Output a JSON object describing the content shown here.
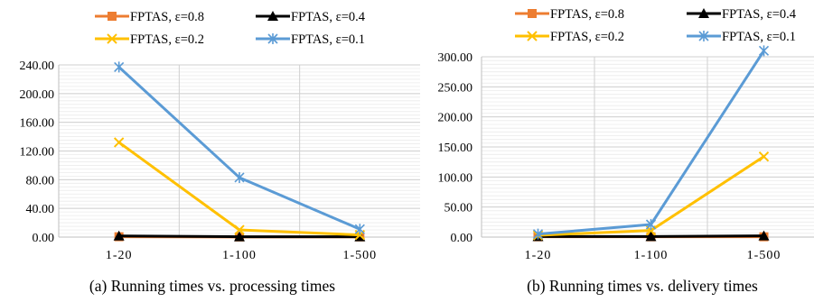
{
  "chart_data": [
    {
      "type": "line",
      "caption": "(a) Running times vs. processing times",
      "categories": [
        "1-20",
        "1-100",
        "1-500"
      ],
      "ylim": [
        0,
        240
      ],
      "yticks": [
        "0.00",
        "40.00",
        "80.00",
        "120.00",
        "160.00",
        "200.00",
        "240.00"
      ],
      "ytick_values": [
        0,
        40,
        80,
        120,
        160,
        200,
        240
      ],
      "minor_grid_step": 5,
      "legend_position": "top",
      "series": [
        {
          "name": "FPTAS, ε=0.8",
          "color": "#ED7D31",
          "marker": "square",
          "values": [
            0.5,
            0.2,
            0.3
          ]
        },
        {
          "name": "FPTAS, ε=0.4",
          "color": "#000000",
          "marker": "triangle",
          "values": [
            1.5,
            0.5,
            0.5
          ]
        },
        {
          "name": "FPTAS, ε=0.2",
          "color": "#FFC000",
          "marker": "x",
          "values": [
            132,
            10,
            3
          ]
        },
        {
          "name": "FPTAS, ε=0.1",
          "color": "#5B9BD5",
          "marker": "asterisk",
          "values": [
            237,
            83,
            11
          ]
        }
      ]
    },
    {
      "type": "line",
      "caption": "(b) Running times vs. delivery times",
      "categories": [
        "1-20",
        "1-100",
        "1-500"
      ],
      "ylim": [
        0,
        300
      ],
      "yticks": [
        "0.00",
        "50.00",
        "100.00",
        "150.00",
        "200.00",
        "250.00",
        "300.00"
      ],
      "ytick_values": [
        0,
        50,
        100,
        150,
        200,
        250,
        300
      ],
      "minor_grid_step": 6.25,
      "legend_position": "top",
      "series": [
        {
          "name": "FPTAS, ε=0.8",
          "color": "#ED7D31",
          "marker": "square",
          "values": [
            0.5,
            0.5,
            0.5
          ]
        },
        {
          "name": "FPTAS, ε=0.4",
          "color": "#000000",
          "marker": "triangle",
          "values": [
            1,
            1,
            2
          ]
        },
        {
          "name": "FPTAS, ε=0.2",
          "color": "#FFC000",
          "marker": "x",
          "values": [
            3,
            11,
            134
          ]
        },
        {
          "name": "FPTAS, ε=0.1",
          "color": "#5B9BD5",
          "marker": "asterisk",
          "values": [
            5,
            21,
            310
          ]
        }
      ]
    }
  ]
}
